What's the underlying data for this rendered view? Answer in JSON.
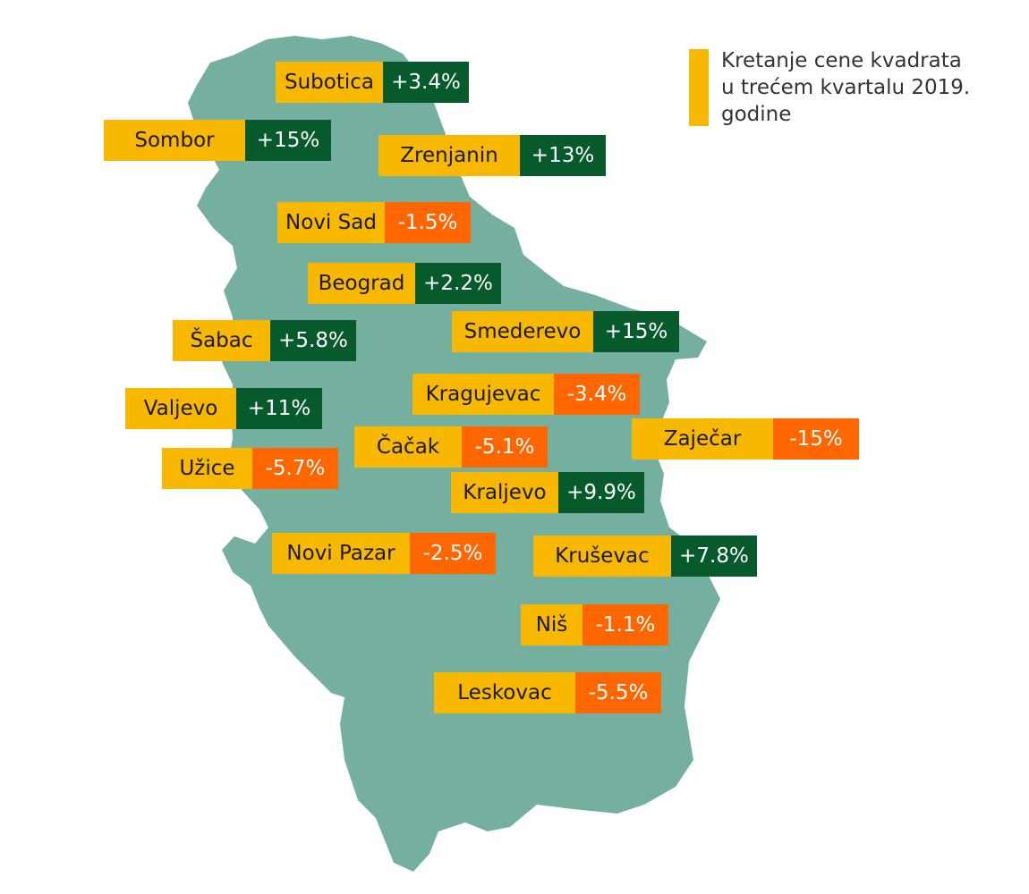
{
  "legend": {
    "line1": "Kretanje cene kvadrata",
    "line2": "u trećem kvartalu 2019.",
    "line3": "godine",
    "color": "#F8B800"
  },
  "colors": {
    "map": "#74AFA0",
    "label_bg": "#F8B800",
    "positive": "#075A2B",
    "negative": "#FF6600"
  },
  "cities": [
    {
      "name": "Subotica",
      "change": "+3.4%",
      "trend": "positive"
    },
    {
      "name": "Sombor",
      "change": "+15%",
      "trend": "positive"
    },
    {
      "name": "Zrenjanin",
      "change": "+13%",
      "trend": "positive"
    },
    {
      "name": "Novi Sad",
      "change": "-1.5%",
      "trend": "negative"
    },
    {
      "name": "Beograd",
      "change": "+2.2%",
      "trend": "positive"
    },
    {
      "name": "Smederevo",
      "change": "+15%",
      "trend": "positive"
    },
    {
      "name": "Šabac",
      "change": "+5.8%",
      "trend": "positive"
    },
    {
      "name": "Kragujevac",
      "change": "-3.4%",
      "trend": "negative"
    },
    {
      "name": "Valjevo",
      "change": "+11%",
      "trend": "positive"
    },
    {
      "name": "Zaječar",
      "change": "-15%",
      "trend": "negative"
    },
    {
      "name": "Čačak",
      "change": "-5.1%",
      "trend": "negative"
    },
    {
      "name": "Užice",
      "change": "-5.7%",
      "trend": "negative"
    },
    {
      "name": "Kraljevo",
      "change": "+9.9%",
      "trend": "positive"
    },
    {
      "name": "Novi Pazar",
      "change": "-2.5%",
      "trend": "negative"
    },
    {
      "name": "Kruševac",
      "change": "+7.8%",
      "trend": "positive"
    },
    {
      "name": "Niš",
      "change": "-1.1%",
      "trend": "negative"
    },
    {
      "name": "Leskovac",
      "change": "-5.5%",
      "trend": "negative"
    }
  ]
}
